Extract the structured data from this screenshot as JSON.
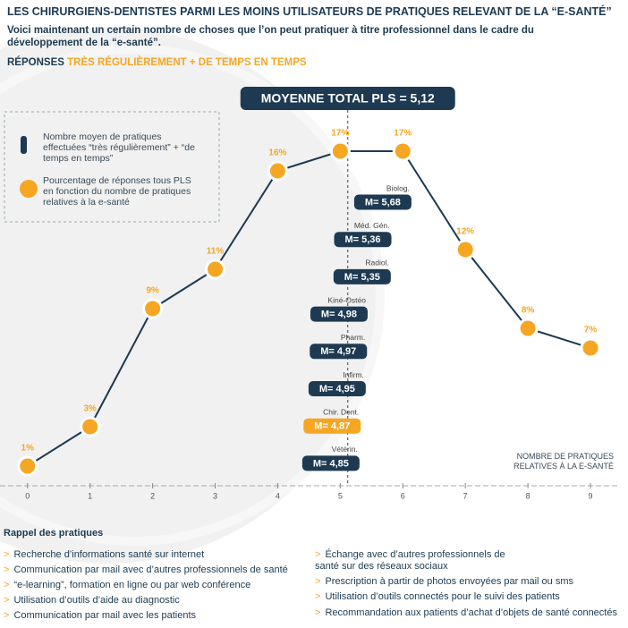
{
  "title": "LES CHIRURGIENS-DENTISTES PARMI LES MOINS UTILISATEURS DE PRATIQUES RELEVANT DE LA “E-SANTÉ”",
  "subtitle": "Voici maintenant un certain nombre de choses que l’on peut pratiquer à titre professionnel dans le cadre du développement de la “e-santé”.",
  "responses_label": "RÉPONSES",
  "responses_value": "TRÈS RÉGULIÈREMENT + DE TEMPS EN TEMPS",
  "chart_data": {
    "type": "line",
    "x": [
      0,
      1,
      2,
      3,
      4,
      5,
      6,
      7,
      8,
      9
    ],
    "series": [
      {
        "name": "Pourcentage de réponses tous PLS en fonction du nombre de pratiques relatives à la e-santé",
        "color": "#f5a623",
        "values": [
          1,
          3,
          9,
          11,
          16,
          17,
          17,
          12,
          8,
          7
        ],
        "value_labels": [
          "1%",
          "3%",
          "9%",
          "11%",
          "16%",
          "17%",
          "17%",
          "12%",
          "8%",
          "7%"
        ]
      }
    ],
    "xlim": [
      -0.44,
      9.4
    ],
    "ylim": [
      0,
      18
    ],
    "xticks": [
      0,
      1,
      2,
      3,
      4,
      5,
      6,
      7,
      8,
      9
    ],
    "x_label": [
      "NOMBRE DE PRATIQUES",
      "RELATIVES À LA E-SANTÉ"
    ],
    "mean_legend": "Nombre moyen de pratiques effectuées “très régulièrement” + “de temps en temps”",
    "mean": {
      "value": 5.12,
      "label": "MOYENNE TOTAL PLS = 5,12"
    },
    "groups": [
      {
        "name": "Biolog.",
        "value": 5.68,
        "label": "M= 5,68",
        "color": "#1d3a52"
      },
      {
        "name": "Méd. Gén.",
        "value": 5.36,
        "label": "M= 5,36",
        "color": "#1d3a52"
      },
      {
        "name": "Radiol.",
        "value": 5.35,
        "label": "M= 5,35",
        "color": "#1d3a52"
      },
      {
        "name": "Kiné-Ostéo",
        "value": 4.98,
        "label": "M= 4,98",
        "color": "#1d3a52"
      },
      {
        "name": "Pharm.",
        "value": 4.97,
        "label": "M= 4,97",
        "color": "#1d3a52"
      },
      {
        "name": "Infirm.",
        "value": 4.95,
        "label": "M= 4,95",
        "color": "#1d3a52"
      },
      {
        "name": "Chir. Dent.",
        "value": 4.87,
        "label": "M= 4,87",
        "color": "#f5a623"
      },
      {
        "name": "Vétérin.",
        "value": 4.85,
        "label": "M= 4,85",
        "color": "#1d3a52"
      }
    ]
  },
  "practices_title": "Rappel des pratiques",
  "practices": [
    "Recherche d’informations santé sur internet",
    "Communication par mail avec d’autres professionnels de santé",
    "“e-learning”, formation en ligne ou par web conférence",
    "Utilisation d’outils d’aide au diagnostic",
    "Communication par mail avec les patients",
    "Échange avec d’autres professionnels de santé sur des réseaux sociaux",
    "Prescription à partir de photos envoyées par mail ou sms",
    "Utilisation d’outils connectés pour le suivi des patients",
    "Recommandation aux patients d’achat d’objets de santé connectés"
  ]
}
